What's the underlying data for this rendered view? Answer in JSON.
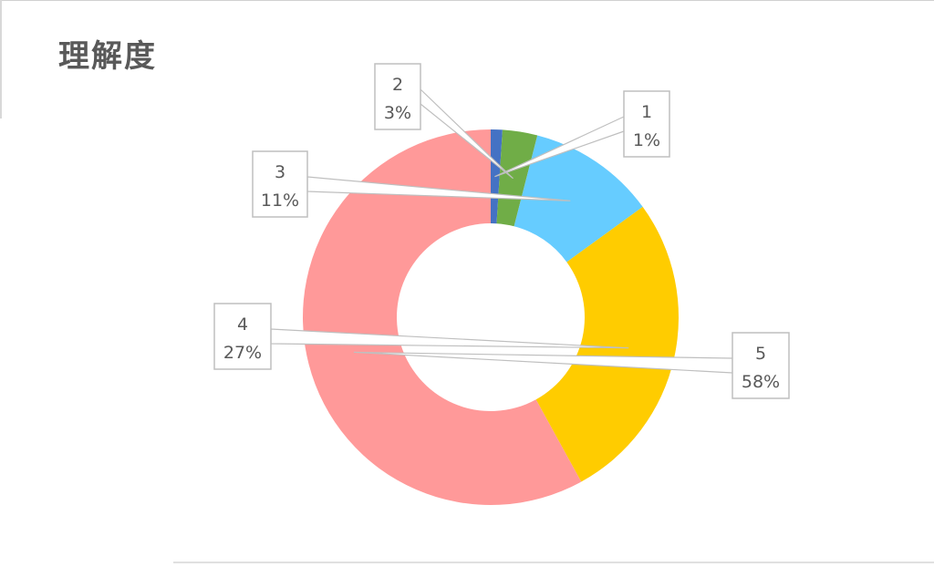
{
  "chart_data": {
    "type": "pie",
    "variant": "doughnut",
    "title": "理解度",
    "categories": [
      "1",
      "2",
      "3",
      "4",
      "5"
    ],
    "values": [
      1,
      3,
      11,
      27,
      58
    ],
    "value_labels": [
      "1%",
      "3%",
      "11%",
      "27%",
      "58%"
    ],
    "colors": [
      "#4472C4",
      "#70AD47",
      "#66CCFF",
      "#FFCC00",
      "#FF9999"
    ],
    "legend": "none"
  }
}
